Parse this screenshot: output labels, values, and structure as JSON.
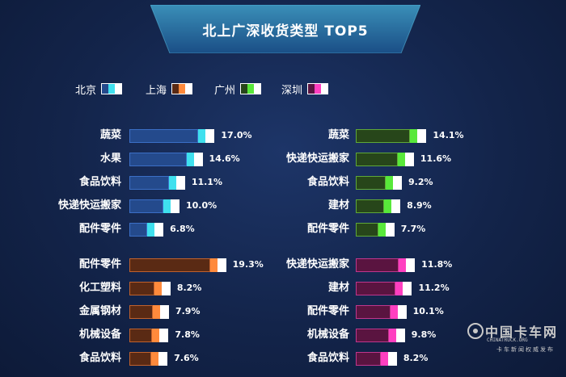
{
  "title": "北上广深收货类型 TOP5",
  "legend": [
    {
      "name": "北京",
      "main": "#244a8c",
      "accent": "#3fe0ee"
    },
    {
      "name": "上海",
      "main": "#5a2a14",
      "accent": "#ff8a3c"
    },
    {
      "name": "广州",
      "main": "#27461a",
      "accent": "#58e83a"
    },
    {
      "name": "深圳",
      "main": "#5a1440",
      "accent": "#ff3fc0"
    }
  ],
  "chart_data": [
    {
      "type": "bar",
      "series_name": "北京",
      "categories": [
        "蔬菜",
        "水果",
        "食品饮料",
        "快递快运搬家",
        "配件零件"
      ],
      "values": [
        17.0,
        14.6,
        11.1,
        10.0,
        6.8
      ],
      "value_labels": [
        "17.0%",
        "14.6%",
        "11.1%",
        "10.0%",
        "6.8%"
      ],
      "colors": {
        "main": "#244a8c",
        "border": "#3b6fc6",
        "accent": "#3fe0ee"
      }
    },
    {
      "type": "bar",
      "series_name": "广州",
      "categories": [
        "蔬菜",
        "快递快运搬家",
        "食品饮料",
        "建材",
        "配件零件"
      ],
      "values": [
        14.1,
        11.6,
        9.2,
        8.9,
        7.7
      ],
      "value_labels": [
        "14.1%",
        "11.6%",
        "9.2%",
        "8.9%",
        "7.7%"
      ],
      "colors": {
        "main": "#27461a",
        "border": "#5fa838",
        "accent": "#58e83a"
      }
    },
    {
      "type": "bar",
      "series_name": "上海",
      "categories": [
        "配件零件",
        "化工塑料",
        "金属钢材",
        "机械设备",
        "食品饮料"
      ],
      "values": [
        19.3,
        8.2,
        7.9,
        7.8,
        7.6
      ],
      "value_labels": [
        "19.3%",
        "8.2%",
        "7.9%",
        "7.8%",
        "7.6%"
      ],
      "colors": {
        "main": "#5a2a14",
        "border": "#c0612c",
        "accent": "#ff8a3c"
      }
    },
    {
      "type": "bar",
      "series_name": "深圳",
      "categories": [
        "快递快运搬家",
        "建材",
        "配件零件",
        "机械设备",
        "食品饮料"
      ],
      "values": [
        11.8,
        11.2,
        10.1,
        9.8,
        8.2
      ],
      "value_labels": [
        "11.8%",
        "11.2%",
        "10.1%",
        "9.8%",
        "8.2%"
      ],
      "colors": {
        "main": "#5a1440",
        "border": "#c0368c",
        "accent": "#ff3fc0"
      }
    }
  ],
  "watermark": {
    "main": "中国卡车网",
    "en": "CHINATRUCK.ORG",
    "sub": "卡车新闻权威发布"
  }
}
